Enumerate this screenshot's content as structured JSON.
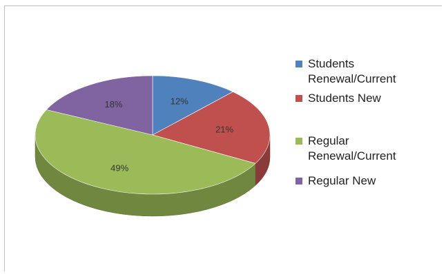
{
  "chart_data": {
    "type": "pie",
    "style": "3d",
    "title": "",
    "slices": [
      {
        "label": "Students Renewal/Current",
        "value": 12,
        "display": "12%",
        "color": "#4f81bd"
      },
      {
        "label": "Students New",
        "value": 21,
        "display": "21%",
        "color": "#c0504d"
      },
      {
        "label": "Regular Renewal/Current",
        "value": 49,
        "display": "49%",
        "color": "#9bbb59"
      },
      {
        "label": "Regular New",
        "value": 18,
        "display": "18%",
        "color": "#8064a2"
      }
    ],
    "legend_position": "right"
  },
  "legend": [
    {
      "label": "Students\nRenewal/Current",
      "color": "#4f81bd"
    },
    {
      "label": "Students New",
      "color": "#c0504d"
    },
    {
      "label": "Regular\nRenewal/Current",
      "color": "#9bbb59"
    },
    {
      "label": "Regular New",
      "color": "#8064a2"
    }
  ]
}
